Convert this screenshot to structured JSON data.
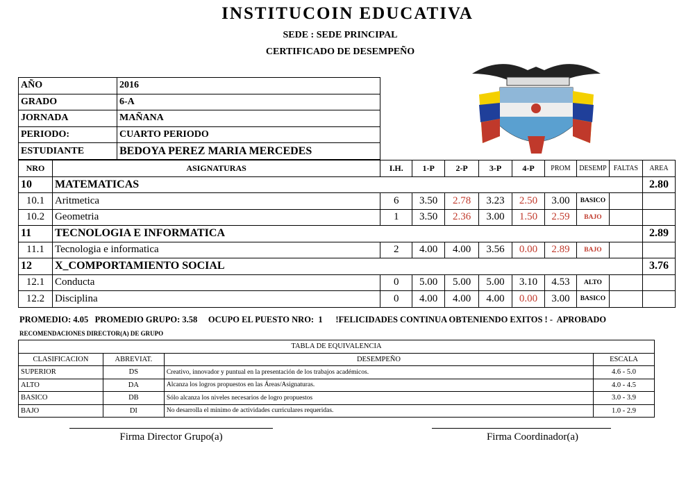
{
  "header": {
    "title": "INSTITUCOIN EDUCATIVA",
    "sede": "SEDE :  SEDE PRINCIPAL",
    "certificate": "CERTIFICADO DE DESEMPEÑO",
    "emblem": "colombia-coat-of-arms"
  },
  "info": [
    {
      "label": "AÑO",
      "value": "2016"
    },
    {
      "label": "GRADO",
      "value": "6-A"
    },
    {
      "label": "JORNADA",
      "value": "MAÑANA"
    },
    {
      "label": "PERIODO:",
      "value": "CUARTO PERIODO"
    },
    {
      "label": "ESTUDIANTE",
      "value": "BEDOYA PEREZ  MARIA MERCEDES"
    }
  ],
  "grades": {
    "columns": [
      "NRO",
      "ASIGNATURAS",
      "I.H.",
      "1-P",
      "2-P",
      "3-P",
      "4-P",
      "PROM",
      "DESEMP",
      "FALTAS",
      "AREA"
    ],
    "areas": [
      {
        "nro": "10",
        "name": "MATEMATICAS",
        "area": "2.80",
        "subjects": [
          {
            "nro": "10.1",
            "name": "Aritmetica",
            "ih": "6",
            "p1": "3.50",
            "p2": "2.78",
            "p3": "3.23",
            "p4": "2.50",
            "prom": "3.00",
            "desemp": "BASICO",
            "faltas": ""
          },
          {
            "nro": "10.2",
            "name": "Geometria",
            "ih": "1",
            "p1": "3.50",
            "p2": "2.36",
            "p3": "3.00",
            "p4": "1.50",
            "prom": "2.59",
            "desemp": "BAJO",
            "faltas": ""
          }
        ]
      },
      {
        "nro": "11",
        "name": "TECNOLOGIA E INFORMATICA",
        "area": "2.89",
        "subjects": [
          {
            "nro": "11.1",
            "name": "Tecnologia e informatica",
            "ih": "2",
            "p1": "4.00",
            "p2": "4.00",
            "p3": "3.56",
            "p4": "0.00",
            "prom": "2.89",
            "desemp": "BAJO",
            "faltas": ""
          }
        ]
      },
      {
        "nro": "12",
        "name": "X_COMPORTAMIENTO SOCIAL",
        "area": "3.76",
        "subjects": [
          {
            "nro": "12.1",
            "name": "Conducta",
            "ih": "0",
            "p1": "5.00",
            "p2": "5.00",
            "p3": "5.00",
            "p4": "3.10",
            "prom": "4.53",
            "desemp": "ALTO",
            "faltas": ""
          },
          {
            "nro": "12.2",
            "name": "Disciplina",
            "ih": "0",
            "p1": "4.00",
            "p2": "4.00",
            "p3": "4.00",
            "p4": "0.00",
            "prom": "3.00",
            "desemp": "BASICO",
            "faltas": ""
          }
        ]
      }
    ]
  },
  "summary": "PROMEDIO: 4.05   PROMEDIO GRUPO: 3.58     OCUPO EL PUESTO NRO:  1      !FELICIDADES CONTINUA OBTENIENDO EXITOS ! -  APROBADO",
  "recommendations_label": "RECOMENDACIONES DIRECTOR(A) DE GRUPO",
  "equivalence": {
    "title": "TABLA DE EQUIVALENCIA",
    "columns": [
      "CLASIFICACION",
      "ABREVIAT.",
      "DESEMPEÑO",
      "ESCALA"
    ],
    "rows": [
      [
        "SUPERIOR",
        "DS",
        "Creativo, innovador y puntual en la presentación de los trabajos académicos.",
        "4.6  -  5.0"
      ],
      [
        "ALTO",
        "DA",
        "Alcanza los logros propuestos en las Áreas/Asignaturas.",
        "4.0  -  4.5"
      ],
      [
        "BASICO",
        "DB",
        "Sólo alcanza los niveles necesarios de logro propuestos",
        "3.0 -  3.9"
      ],
      [
        "BAJO",
        "DI",
        "No desarrolla el minimo de actividades curriculares requeridas.",
        "1.0  -  2.9"
      ]
    ]
  },
  "signatures": {
    "director": "Firma Director Grupo(a)",
    "coordinator": "Firma Coordinador(a)"
  },
  "colors": {
    "low_grade": "#c0392b"
  }
}
